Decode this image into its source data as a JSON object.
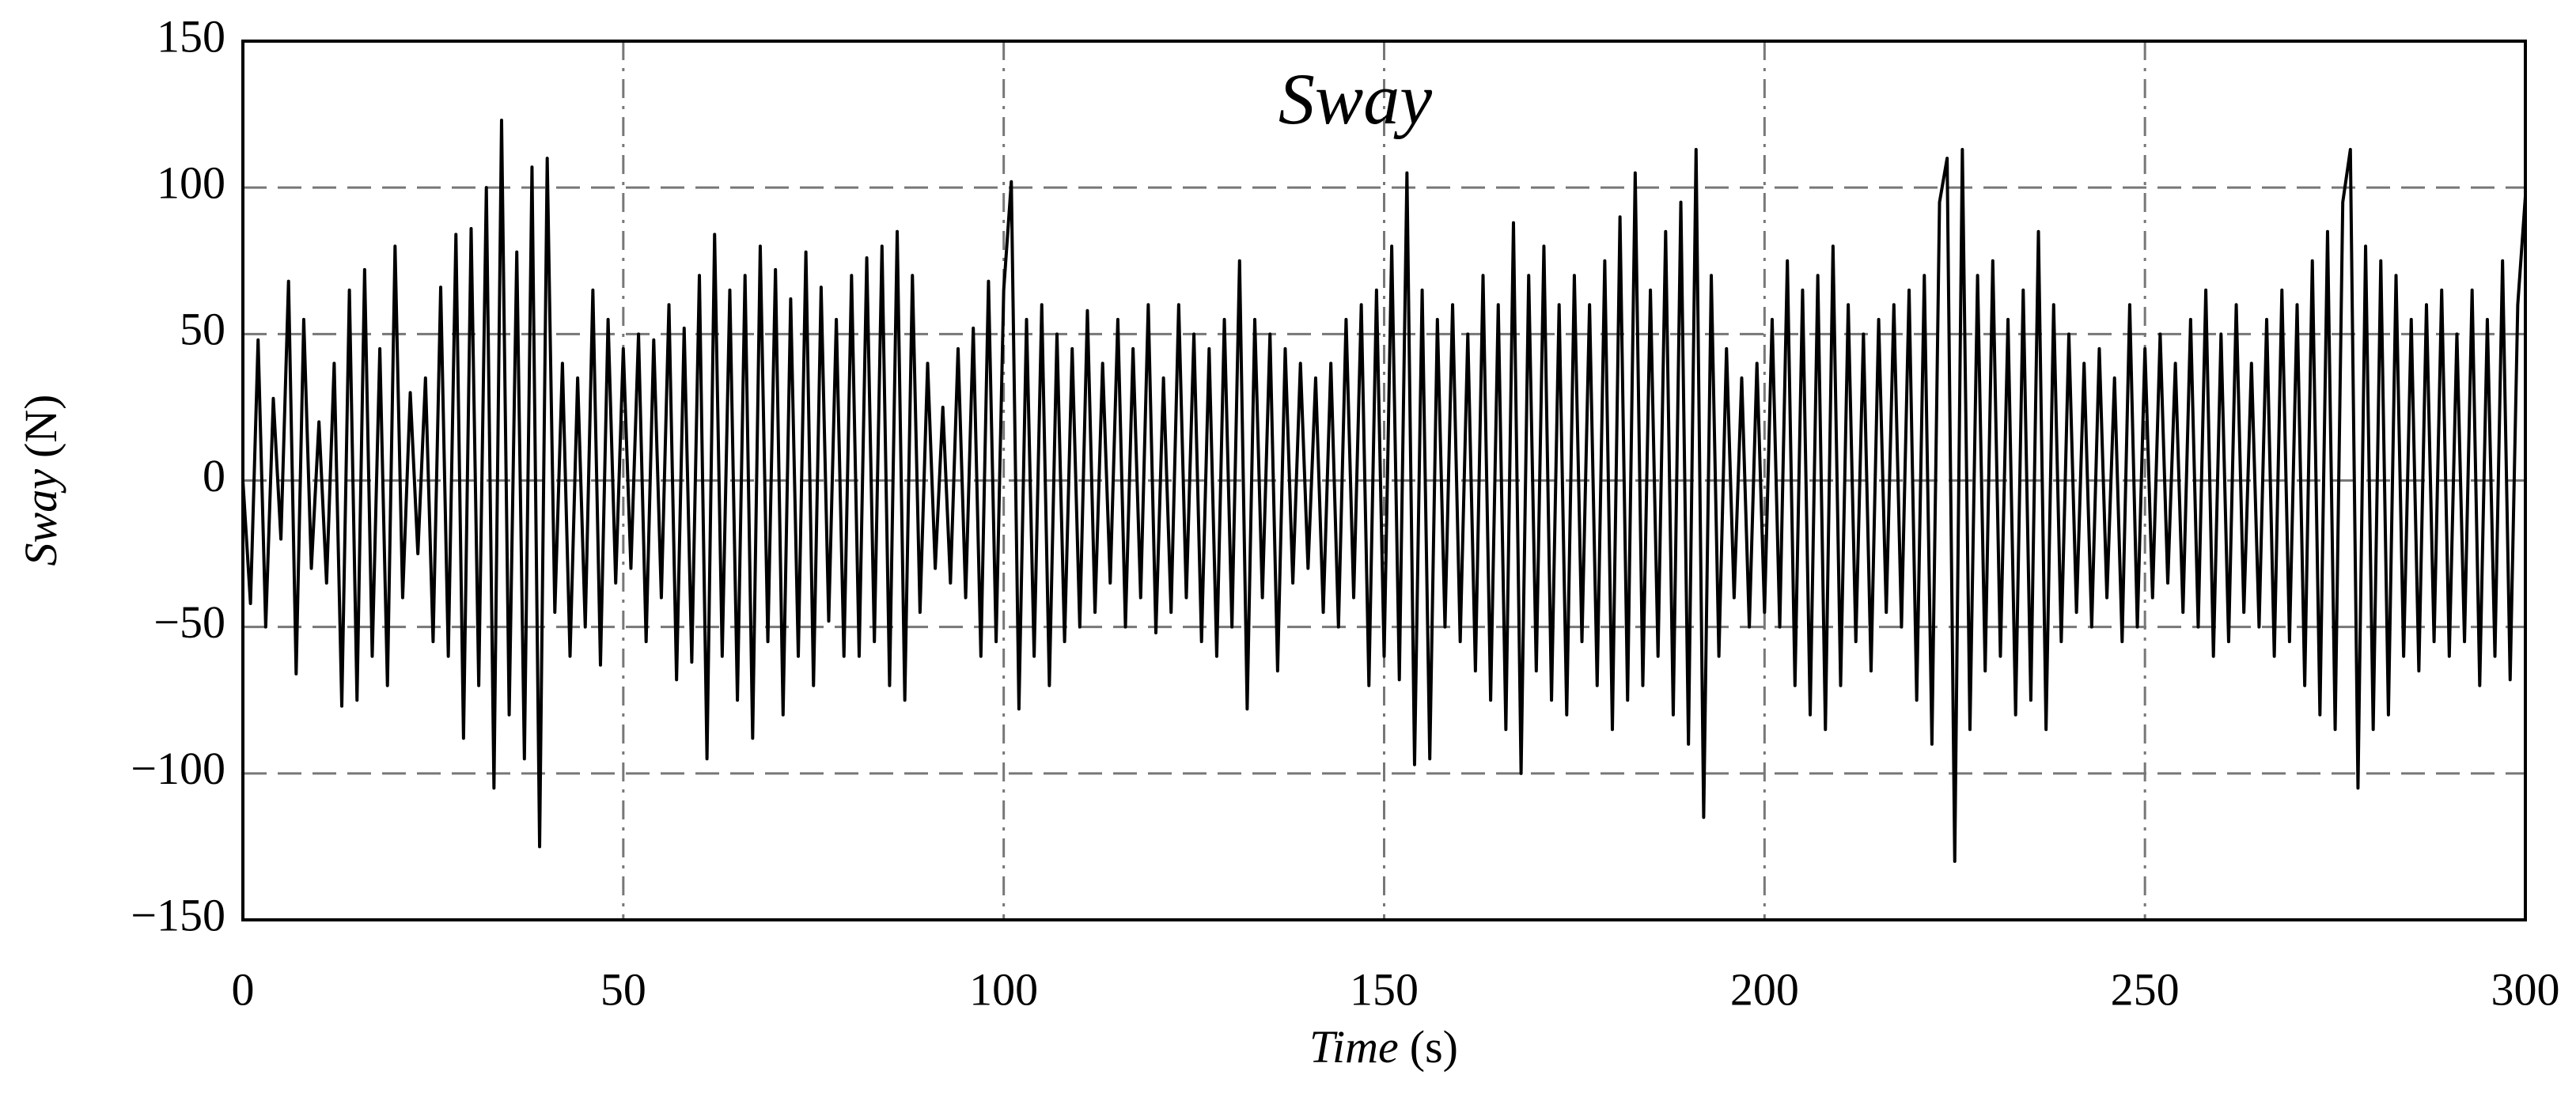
{
  "chart_data": {
    "type": "line",
    "title": "Sway",
    "xlabel": [
      "Time",
      "(s)"
    ],
    "ylabel": [
      "Sway",
      "(N)"
    ],
    "xlim": [
      0,
      300
    ],
    "xticks": [
      0,
      50,
      100,
      150,
      200,
      250,
      300
    ],
    "ylim": [
      -150,
      150
    ],
    "yticks": [
      {
        "value": -150,
        "label": "−150"
      },
      {
        "value": -100,
        "label": "−100"
      },
      {
        "value": -50,
        "label": "−50"
      },
      0,
      50,
      100,
      150
    ],
    "grid": true,
    "x": [
      0,
      1,
      2,
      3,
      4,
      5,
      6,
      7,
      8,
      9,
      10,
      11,
      12,
      13,
      14,
      15,
      16,
      17,
      18,
      19,
      20,
      21,
      22,
      23,
      24,
      25,
      26,
      27,
      28,
      29,
      30,
      31,
      32,
      33,
      34,
      35,
      36,
      37,
      38,
      39,
      40,
      41,
      42,
      43,
      44,
      45,
      46,
      47,
      48,
      49,
      50,
      51,
      52,
      53,
      54,
      55,
      56,
      57,
      58,
      59,
      60,
      61,
      62,
      63,
      64,
      65,
      66,
      67,
      68,
      69,
      70,
      71,
      72,
      73,
      74,
      75,
      76,
      77,
      78,
      79,
      80,
      81,
      82,
      83,
      84,
      85,
      86,
      87,
      88,
      89,
      90,
      91,
      92,
      93,
      94,
      95,
      96,
      97,
      98,
      99,
      100,
      101,
      102,
      103,
      104,
      105,
      106,
      107,
      108,
      109,
      110,
      111,
      112,
      113,
      114,
      115,
      116,
      117,
      118,
      119,
      120,
      121,
      122,
      123,
      124,
      125,
      126,
      127,
      128,
      129,
      130,
      131,
      132,
      133,
      134,
      135,
      136,
      137,
      138,
      139,
      140,
      141,
      142,
      143,
      144,
      145,
      146,
      147,
      148,
      149,
      150,
      151,
      152,
      153,
      154,
      155,
      156,
      157,
      158,
      159,
      160,
      161,
      162,
      163,
      164,
      165,
      166,
      167,
      168,
      169,
      170,
      171,
      172,
      173,
      174,
      175,
      176,
      177,
      178,
      179,
      180,
      181,
      182,
      183,
      184,
      185,
      186,
      187,
      188,
      189,
      190,
      191,
      192,
      193,
      194,
      195,
      196,
      197,
      198,
      199,
      200,
      201,
      202,
      203,
      204,
      205,
      206,
      207,
      208,
      209,
      210,
      211,
      212,
      213,
      214,
      215,
      216,
      217,
      218,
      219,
      220,
      221,
      222,
      223,
      224,
      225,
      226,
      227,
      228,
      229,
      230,
      231,
      232,
      233,
      234,
      235,
      236,
      237,
      238,
      239,
      240,
      241,
      242,
      243,
      244,
      245,
      246,
      247,
      248,
      249,
      250,
      251,
      252,
      253,
      254,
      255,
      256,
      257,
      258,
      259,
      260,
      261,
      262,
      263,
      264,
      265,
      266,
      267,
      268,
      269,
      270,
      271,
      272,
      273,
      274,
      275,
      276,
      277,
      278,
      279,
      280,
      281,
      282,
      283,
      284,
      285,
      286,
      287,
      288,
      289,
      290,
      291,
      292,
      293,
      294,
      295,
      296,
      297,
      298,
      299,
      300
    ],
    "series": [
      {
        "name": "Sway",
        "color": "#000000",
        "values": [
          0,
          -42,
          48,
          -50,
          28,
          -20,
          68,
          -66,
          55,
          -30,
          20,
          -35,
          40,
          -77,
          65,
          -75,
          72,
          -60,
          45,
          -70,
          80,
          -40,
          30,
          -25,
          35,
          -55,
          66,
          -60,
          84,
          -88,
          86,
          -70,
          100,
          -105,
          123,
          -80,
          78,
          -95,
          107,
          -125,
          110,
          -45,
          40,
          -60,
          35,
          -50,
          65,
          -63,
          55,
          -35,
          45,
          -30,
          50,
          -55,
          48,
          -40,
          60,
          -68,
          52,
          -62,
          70,
          -95,
          84,
          -60,
          65,
          -75,
          70,
          -88,
          80,
          -55,
          72,
          -80,
          62,
          -60,
          78,
          -70,
          66,
          -48,
          55,
          -60,
          70,
          -60,
          76,
          -55,
          80,
          -70,
          85,
          -75,
          70,
          -45,
          40,
          -30,
          25,
          -35,
          45,
          -40,
          52,
          -60,
          68,
          -55,
          65,
          102,
          -78,
          55,
          -60,
          60,
          -70,
          50,
          -55,
          45,
          -50,
          58,
          -45,
          40,
          -35,
          55,
          -50,
          45,
          -40,
          60,
          -52,
          35,
          -45,
          60,
          -40,
          50,
          -55,
          45,
          -60,
          55,
          -50,
          75,
          -78,
          55,
          -40,
          50,
          -65,
          45,
          -35,
          40,
          -30,
          35,
          -45,
          40,
          -50,
          55,
          -40,
          60,
          -70,
          65,
          -60,
          80,
          -68,
          105,
          -97,
          65,
          -95,
          55,
          -50,
          60,
          -55,
          50,
          -65,
          70,
          -75,
          60,
          -85,
          88,
          -100,
          70,
          -65,
          80,
          -75,
          60,
          -80,
          70,
          -55,
          60,
          -70,
          75,
          -85,
          90,
          -75,
          105,
          -70,
          65,
          -60,
          85,
          -80,
          95,
          -90,
          113,
          -115,
          70,
          -60,
          45,
          -40,
          35,
          -50,
          40,
          -45,
          55,
          -50,
          75,
          -70,
          65,
          -80,
          70,
          -85,
          80,
          -70,
          60,
          -55,
          50,
          -65,
          55,
          -45,
          60,
          -50,
          65,
          -75,
          70,
          -90,
          95,
          110,
          -130,
          113,
          -85,
          70,
          -65,
          75,
          -60,
          55,
          -80,
          65,
          -75,
          85,
          -85,
          60,
          -55,
          50,
          -45,
          40,
          -50,
          45,
          -40,
          35,
          -55,
          60,
          -50,
          45,
          -40,
          50,
          -35,
          40,
          -45,
          55,
          -50,
          65,
          -60,
          50,
          -55,
          60,
          -45,
          40,
          -50,
          55,
          -60,
          65,
          -55,
          60,
          -70,
          75,
          -80,
          85,
          -85,
          95,
          113,
          -105,
          80,
          -85,
          75,
          -80,
          70,
          -60,
          55,
          -65,
          60,
          -55,
          65,
          -60,
          50,
          -55,
          65,
          -70,
          55,
          -60,
          75,
          -68,
          60,
          97
        ]
      }
    ]
  }
}
